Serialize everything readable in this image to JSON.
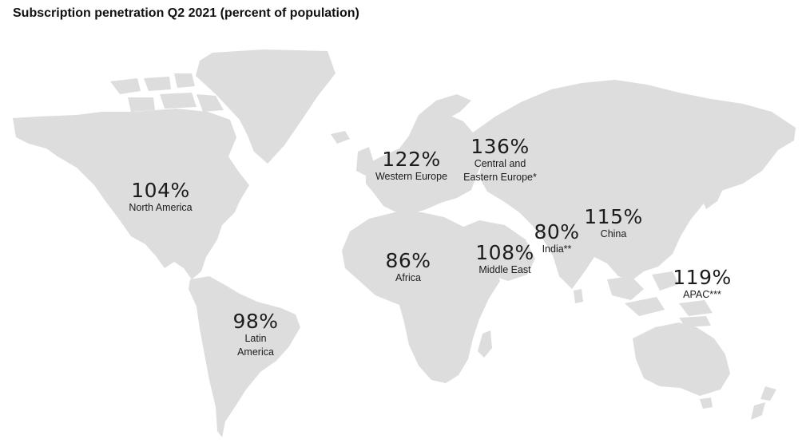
{
  "title": "Subscription penetration Q2 2021 (percent of population)",
  "colors": {
    "land": "#dddddd",
    "text": "#1c1c1c",
    "background": "#ffffff"
  },
  "regions": [
    {
      "name": "North America",
      "value": "104%"
    },
    {
      "name": "Latin America",
      "value": "98%"
    },
    {
      "name": "Western Europe",
      "value": "122%"
    },
    {
      "name": "Central and Eastern Europe*",
      "value": "136%"
    },
    {
      "name": "Africa",
      "value": "86%"
    },
    {
      "name": "Middle East",
      "value": "108%"
    },
    {
      "name": "India**",
      "value": "80%"
    },
    {
      "name": "China",
      "value": "115%"
    },
    {
      "name": "APAC***",
      "value": "119%"
    }
  ]
}
